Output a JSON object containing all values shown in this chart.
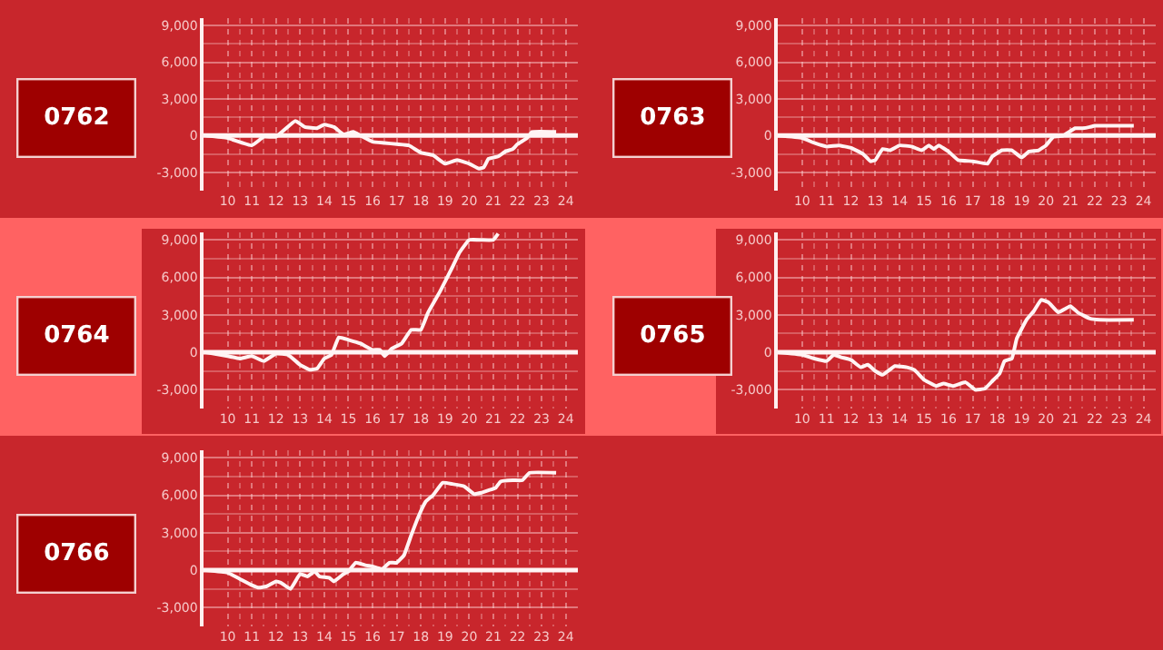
{
  "chart_data": [
    {
      "type": "line",
      "title": "0762",
      "color": "#fff4f4",
      "marker": "none",
      "line_style": "solid",
      "grid": true,
      "x": [
        9.1,
        10,
        11,
        11.5,
        12,
        12.8,
        13.2,
        13.7,
        14,
        14.4,
        14.8,
        15.2,
        15.5,
        16,
        16.5,
        17,
        17.5,
        18,
        18.5,
        19,
        19.5,
        20,
        20.4,
        20.6,
        20.8,
        21.2,
        21.5,
        21.8,
        22,
        22.4,
        22.6,
        23.6
      ],
      "values": [
        0,
        -200,
        -800,
        -100,
        -100,
        1200,
        700,
        600,
        900,
        700,
        100,
        300,
        0,
        -500,
        -600,
        -700,
        -800,
        -1400,
        -1600,
        -2300,
        -2000,
        -2300,
        -2700,
        -2600,
        -1900,
        -1700,
        -1300,
        -1100,
        -700,
        -200,
        300,
        300
      ],
      "xlim": [
        9,
        24.5
      ],
      "ylim": [
        -4500,
        9600
      ],
      "xticks": [
        10,
        11,
        12,
        13,
        14,
        15,
        16,
        17,
        18,
        19,
        20,
        21,
        22,
        23,
        24
      ],
      "yticks": [
        {
          "value": -3000,
          "label": "-3,000"
        },
        0,
        {
          "value": 3000,
          "label": "3,000"
        },
        {
          "value": 6000,
          "label": "6,000"
        },
        {
          "value": 9000,
          "label": "9,000"
        }
      ],
      "ref_lines": [
        {
          "axis": "y",
          "value": 0,
          "color": "#fff4f4"
        }
      ]
    },
    {
      "type": "line",
      "title": "0763",
      "color": "#fff4f4",
      "marker": "none",
      "line_style": "solid",
      "grid": true,
      "x": [
        9,
        10,
        10.5,
        11,
        11.5,
        12,
        12.5,
        12.8,
        13,
        13.3,
        13.6,
        14,
        14.5,
        14.9,
        15.2,
        15.4,
        15.6,
        16,
        16.4,
        17,
        17.6,
        17.8,
        18.2,
        18.6,
        19,
        19.3,
        19.7,
        20,
        20.3,
        20.7,
        21.2,
        21.5,
        21.8,
        22,
        23.6
      ],
      "values": [
        0,
        -200,
        -600,
        -900,
        -800,
        -1000,
        -1500,
        -2100,
        -2000,
        -1100,
        -1200,
        -800,
        -900,
        -1200,
        -800,
        -1100,
        -800,
        -1300,
        -2000,
        -2100,
        -2300,
        -1700,
        -1200,
        -1200,
        -1800,
        -1300,
        -1200,
        -800,
        -100,
        0,
        600,
        600,
        700,
        800,
        800
      ],
      "xlim": [
        9,
        24.5
      ],
      "ylim": [
        -4500,
        9600
      ],
      "xticks": [
        10,
        11,
        12,
        13,
        14,
        15,
        16,
        17,
        18,
        19,
        20,
        21,
        22,
        23,
        24
      ],
      "yticks": [
        {
          "value": -3000,
          "label": "-3,000"
        },
        0,
        {
          "value": 3000,
          "label": "3,000"
        },
        {
          "value": 6000,
          "label": "6,000"
        },
        {
          "value": 9000,
          "label": "9,000"
        }
      ],
      "ref_lines": [
        {
          "axis": "y",
          "value": 0,
          "color": "#fff4f4"
        }
      ]
    },
    {
      "type": "line",
      "title": "0764",
      "color": "#fff4f4",
      "marker": "none",
      "line_style": "solid",
      "grid": true,
      "x": [
        9.1,
        10,
        10.5,
        11,
        11.5,
        12,
        12.5,
        13,
        13.4,
        13.7,
        14,
        14.3,
        14.6,
        15,
        15.5,
        16,
        16.3,
        16.5,
        16.8,
        17.2,
        17.6,
        18,
        18.3,
        18.8,
        19.3,
        19.6,
        20,
        20.5,
        21,
        21.2
      ],
      "values": [
        0,
        -300,
        -500,
        -300,
        -700,
        -100,
        -200,
        -1000,
        -1400,
        -1300,
        -500,
        -200,
        1200,
        1000,
        700,
        200,
        200,
        -300,
        300,
        700,
        1800,
        1800,
        3200,
        4900,
        6800,
        8000,
        9000,
        9000,
        9000,
        9500
      ],
      "xlim": [
        9,
        24.5
      ],
      "ylim": [
        -4500,
        9600
      ],
      "xticks": [
        10,
        11,
        12,
        13,
        14,
        15,
        16,
        17,
        18,
        19,
        20,
        21,
        22,
        23,
        24
      ],
      "yticks": [
        {
          "value": -3000,
          "label": "-3,000"
        },
        0,
        {
          "value": 3000,
          "label": "3,000"
        },
        {
          "value": 6000,
          "label": "6,000"
        },
        {
          "value": 9000,
          "label": "9,000"
        }
      ],
      "ref_lines": [
        {
          "axis": "y",
          "value": 0,
          "color": "#fff4f4"
        }
      ]
    },
    {
      "type": "line",
      "title": "0765",
      "color": "#fff4f4",
      "marker": "none",
      "line_style": "solid",
      "grid": true,
      "x": [
        9,
        10,
        10.5,
        11,
        11.3,
        11.6,
        12,
        12.4,
        12.7,
        13,
        13.3,
        13.8,
        14.3,
        14.6,
        15,
        15.5,
        15.8,
        16.2,
        16.7,
        17.1,
        17.5,
        17.8,
        18.1,
        18.3,
        18.6,
        18.8,
        19.2,
        19.5,
        19.8,
        20.1,
        20.5,
        20.8,
        21,
        21.3,
        21.8,
        22.2,
        23.6
      ],
      "values": [
        0,
        -200,
        -500,
        -700,
        -200,
        -400,
        -600,
        -1200,
        -1000,
        -1500,
        -1800,
        -1100,
        -1200,
        -1400,
        -2200,
        -2700,
        -2500,
        -2700,
        -2400,
        -3000,
        -2900,
        -2300,
        -1700,
        -700,
        -500,
        1100,
        2600,
        3300,
        4200,
        4000,
        3200,
        3500,
        3700,
        3200,
        2700,
        2600,
        2600
      ],
      "xlim": [
        9,
        24.5
      ],
      "ylim": [
        -4500,
        9600
      ],
      "xticks": [
        10,
        11,
        12,
        13,
        14,
        15,
        16,
        17,
        18,
        19,
        20,
        21,
        22,
        23,
        24
      ],
      "yticks": [
        {
          "value": -3000,
          "label": "-3,000"
        },
        0,
        {
          "value": 3000,
          "label": "3,000"
        },
        {
          "value": 6000,
          "label": "6,000"
        },
        {
          "value": 9000,
          "label": "9,000"
        }
      ],
      "ref_lines": [
        {
          "axis": "y",
          "value": 0,
          "color": "#fff4f4"
        }
      ]
    },
    {
      "type": "line",
      "title": "0766",
      "color": "#fff4f4",
      "marker": "none",
      "line_style": "solid",
      "grid": true,
      "x": [
        9.1,
        10,
        10.5,
        11,
        11.3,
        11.6,
        12,
        12.2,
        12.6,
        13,
        13.3,
        13.6,
        13.8,
        14.2,
        14.4,
        14.8,
        15,
        15.3,
        15.7,
        16,
        16.4,
        16.7,
        17,
        17.3,
        17.6,
        17.9,
        18.2,
        18.5,
        18.9,
        19.3,
        19.8,
        20.2,
        20.5,
        20.8,
        21.1,
        21.3,
        21.8,
        22.2,
        22.5,
        23.6
      ],
      "values": [
        0,
        -200,
        -700,
        -1200,
        -1400,
        -1300,
        -900,
        -1000,
        -1500,
        -300,
        -500,
        -100,
        -500,
        -600,
        -900,
        -300,
        -100,
        600,
        400,
        300,
        100,
        600,
        600,
        1200,
        2800,
        4300,
        5500,
        6000,
        7000,
        6900,
        6700,
        6100,
        6200,
        6400,
        6600,
        7100,
        7200,
        7200,
        7800,
        7800
      ],
      "xlim": [
        9,
        24.5
      ],
      "ylim": [
        -4500,
        9600
      ],
      "xticks": [
        10,
        11,
        12,
        13,
        14,
        15,
        16,
        17,
        18,
        19,
        20,
        21,
        22,
        23,
        24
      ],
      "yticks": [
        {
          "value": -3000,
          "label": "-3,000"
        },
        0,
        {
          "value": 3000,
          "label": "3,000"
        },
        {
          "value": 6000,
          "label": "6,000"
        },
        {
          "value": 9000,
          "label": "9,000"
        }
      ],
      "ref_lines": [
        {
          "axis": "y",
          "value": 0,
          "color": "#fff4f4"
        }
      ]
    }
  ]
}
